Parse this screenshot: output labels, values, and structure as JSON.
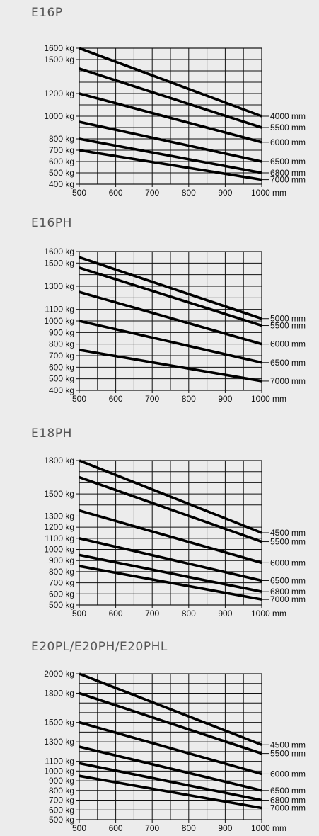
{
  "chart_data": [
    {
      "type": "line",
      "title": "E16P",
      "x_unit": "mm",
      "y_unit": "kg",
      "xlim": [
        500,
        1000
      ],
      "ylim": [
        400,
        1600
      ],
      "x_ticks": [
        500,
        600,
        700,
        800,
        900,
        1000
      ],
      "y_ticks": [
        400,
        500,
        600,
        700,
        800,
        1000,
        1200,
        1500,
        1600
      ],
      "series": [
        {
          "name": "4000 mm",
          "x": [
            500,
            1000
          ],
          "y": [
            1600,
            1000
          ]
        },
        {
          "name": "5500 mm",
          "x": [
            500,
            1000
          ],
          "y": [
            1420,
            900
          ]
        },
        {
          "name": "6000 mm",
          "x": [
            500,
            1000
          ],
          "y": [
            1200,
            770
          ]
        },
        {
          "name": "6500 mm",
          "x": [
            500,
            1000
          ],
          "y": [
            950,
            600
          ]
        },
        {
          "name": "6800 mm",
          "x": [
            500,
            1000
          ],
          "y": [
            800,
            500
          ]
        },
        {
          "name": "7000 mm",
          "x": [
            500,
            1000
          ],
          "y": [
            700,
            440
          ]
        }
      ]
    },
    {
      "type": "line",
      "title": "E16PH",
      "x_unit": "mm",
      "y_unit": "kg",
      "xlim": [
        500,
        1000
      ],
      "ylim": [
        400,
        1600
      ],
      "x_ticks": [
        500,
        600,
        700,
        800,
        900,
        1000
      ],
      "y_ticks": [
        400,
        500,
        600,
        700,
        800,
        900,
        1000,
        1100,
        1300,
        1500,
        1600
      ],
      "series": [
        {
          "name": "5000 mm",
          "x": [
            500,
            1000
          ],
          "y": [
            1550,
            1020
          ]
        },
        {
          "name": "5500 mm",
          "x": [
            500,
            1000
          ],
          "y": [
            1460,
            960
          ]
        },
        {
          "name": "6000 mm",
          "x": [
            500,
            1000
          ],
          "y": [
            1250,
            800
          ]
        },
        {
          "name": "6500 mm",
          "x": [
            500,
            1000
          ],
          "y": [
            1000,
            640
          ]
        },
        {
          "name": "7000 mm",
          "x": [
            500,
            1000
          ],
          "y": [
            750,
            480
          ]
        }
      ]
    },
    {
      "type": "line",
      "title": "E18PH",
      "x_unit": "mm",
      "y_unit": "kg",
      "xlim": [
        500,
        1000
      ],
      "ylim": [
        500,
        1800
      ],
      "x_ticks": [
        500,
        600,
        700,
        800,
        900,
        1000
      ],
      "y_ticks": [
        500,
        600,
        700,
        800,
        900,
        1000,
        1100,
        1200,
        1300,
        1500,
        1800
      ],
      "series": [
        {
          "name": "4500 mm",
          "x": [
            500,
            1000
          ],
          "y": [
            1800,
            1150
          ]
        },
        {
          "name": "5500 mm",
          "x": [
            500,
            1000
          ],
          "y": [
            1650,
            1070
          ]
        },
        {
          "name": "6000 mm",
          "x": [
            500,
            1000
          ],
          "y": [
            1350,
            880
          ]
        },
        {
          "name": "6500 mm",
          "x": [
            500,
            1000
          ],
          "y": [
            1100,
            720
          ]
        },
        {
          "name": "6800 mm",
          "x": [
            500,
            1000
          ],
          "y": [
            950,
            620
          ]
        },
        {
          "name": "7000 mm",
          "x": [
            500,
            1000
          ],
          "y": [
            850,
            550
          ]
        }
      ]
    },
    {
      "type": "line",
      "title": "E20PL/E20PH/E20PHL",
      "x_unit": "mm",
      "y_unit": "kg",
      "xlim": [
        500,
        1000
      ],
      "ylim": [
        500,
        2000
      ],
      "x_ticks": [
        500,
        600,
        700,
        800,
        900,
        1000
      ],
      "y_ticks": [
        500,
        600,
        700,
        800,
        900,
        1000,
        1100,
        1300,
        1500,
        1800,
        2000
      ],
      "series": [
        {
          "name": "4500 mm",
          "x": [
            500,
            1000
          ],
          "y": [
            2000,
            1270
          ]
        },
        {
          "name": "5500 mm",
          "x": [
            500,
            1000
          ],
          "y": [
            1800,
            1180
          ]
        },
        {
          "name": "6000 mm",
          "x": [
            500,
            1000
          ],
          "y": [
            1500,
            970
          ]
        },
        {
          "name": "6500 mm",
          "x": [
            500,
            1000
          ],
          "y": [
            1250,
            800
          ]
        },
        {
          "name": "6800 mm",
          "x": [
            500,
            1000
          ],
          "y": [
            1080,
            700
          ]
        },
        {
          "name": "7000 mm",
          "x": [
            500,
            1000
          ],
          "y": [
            950,
            620
          ]
        }
      ]
    }
  ]
}
